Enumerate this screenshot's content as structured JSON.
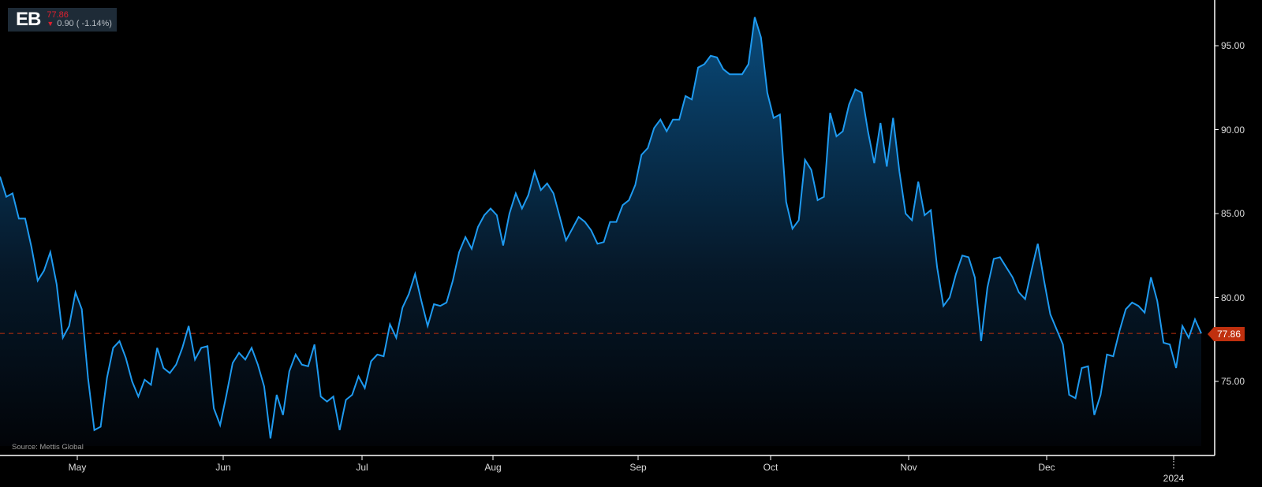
{
  "ticker": {
    "symbol": "EB",
    "price": "77.86",
    "change": "0.90 ( -1.14%)",
    "direction": "down",
    "price_color": "#e0202f"
  },
  "source": "Source: Mettis Global",
  "last_price_label": "77.86",
  "colors": {
    "line": "#1e9af0",
    "fill_top": "#0a4f82",
    "fill_bottom": "#000000",
    "last_price_line": "#c0300e",
    "axis": "#ffffff",
    "background": "#000000"
  },
  "chart_data": {
    "type": "area",
    "title": "EB",
    "xlabel": "",
    "ylabel": "",
    "ylim": [
      71.5,
      97
    ],
    "y_ticks": [
      "95.00",
      "90.00",
      "85.00",
      "80.00",
      "75.00"
    ],
    "x_tick_labels": [
      "May",
      "Jun",
      "Jul",
      "Aug",
      "Sep",
      "Oct",
      "Nov",
      "Dec",
      "2024"
    ],
    "grid": false,
    "last_value": 77.86,
    "values": [
      87.2,
      86.0,
      86.2,
      84.7,
      84.7,
      83.0,
      81.0,
      81.6,
      82.7,
      80.8,
      77.6,
      78.3,
      80.3,
      79.3,
      75.2,
      72.1,
      72.3,
      75.2,
      77.0,
      77.4,
      76.4,
      75.0,
      74.1,
      75.1,
      74.8,
      77.0,
      75.8,
      75.5,
      76.0,
      77.0,
      78.3,
      76.3,
      77.0,
      77.1,
      73.4,
      72.4,
      74.2,
      76.1,
      76.7,
      76.3,
      77.0,
      76.0,
      74.7,
      71.6,
      74.2,
      73.0,
      75.6,
      76.6,
      76.0,
      75.9,
      77.2,
      74.1,
      73.8,
      74.1,
      72.1,
      73.9,
      74.2,
      75.3,
      74.6,
      76.2,
      76.6,
      76.5,
      78.4,
      77.6,
      79.4,
      80.2,
      81.4,
      79.8,
      78.3,
      79.6,
      79.5,
      79.7,
      81.0,
      82.7,
      83.6,
      82.9,
      84.2,
      84.9,
      85.3,
      84.9,
      83.1,
      85.0,
      86.2,
      85.3,
      86.1,
      87.5,
      86.4,
      86.8,
      86.2,
      84.8,
      83.4,
      84.1,
      84.8,
      84.5,
      84.0,
      83.2,
      83.3,
      84.5,
      84.5,
      85.5,
      85.8,
      86.7,
      88.5,
      88.9,
      90.1,
      90.6,
      89.9,
      90.6,
      90.6,
      92.0,
      91.8,
      93.7,
      93.9,
      94.4,
      94.3,
      93.6,
      93.3,
      93.3,
      93.3,
      93.9,
      96.7,
      95.5,
      92.2,
      90.7,
      90.9,
      85.7,
      84.1,
      84.6,
      88.2,
      87.6,
      85.8,
      86.0,
      91.0,
      89.6,
      89.9,
      91.5,
      92.4,
      92.2,
      89.9,
      88.0,
      90.4,
      87.8,
      90.7,
      87.5,
      85.0,
      84.6,
      86.9,
      84.9,
      85.2,
      81.8,
      79.5,
      80.0,
      81.4,
      82.5,
      82.4,
      81.2,
      77.4,
      80.6,
      82.3,
      82.4,
      81.8,
      81.2,
      80.3,
      79.9,
      81.6,
      83.2,
      81.0,
      79.0,
      78.1,
      77.2,
      74.2,
      74.0,
      75.8,
      75.9,
      73.0,
      74.2,
      76.6,
      76.5,
      78.0,
      79.3,
      79.7,
      79.5,
      79.1,
      81.2,
      79.8,
      77.3,
      77.2,
      75.8,
      78.3,
      77.6,
      78.7,
      77.86
    ]
  }
}
